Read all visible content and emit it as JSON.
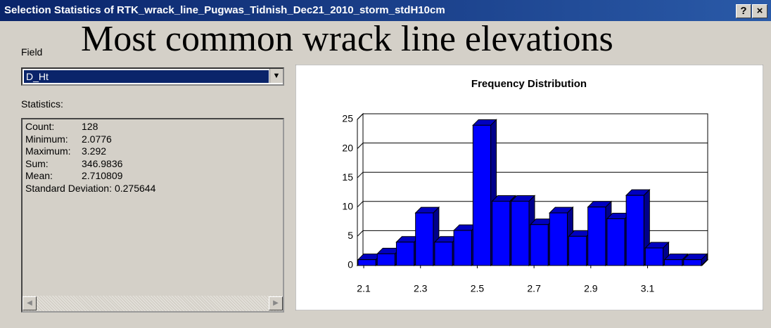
{
  "window": {
    "title": "Selection Statistics of RTK_wrack_line_Pugwas_Tidnish_Dec21_2010_storm_stdH10cm",
    "help_button": "?",
    "close_button": "×"
  },
  "overlay_title": "Most common wrack line elevations",
  "form": {
    "field_label": "Field",
    "field_value": "D_Ht",
    "statistics_label": "Statistics:",
    "statistics": [
      [
        "Count:",
        "128"
      ],
      [
        "Minimum:",
        "2.0776"
      ],
      [
        "Maximum:",
        "3.292"
      ],
      [
        "Sum:",
        "346.9836"
      ],
      [
        "Mean:",
        "2.710809"
      ],
      [
        "Standard Deviation:",
        "0.275644"
      ]
    ]
  },
  "chart_data": {
    "type": "histogram",
    "title": "Frequency Distribution",
    "bins": [
      2.0776,
      2.1451,
      2.2125,
      2.28,
      2.3475,
      2.4149,
      2.4824,
      2.5499,
      2.6173,
      2.6848,
      2.7523,
      2.8198,
      2.8872,
      2.9547,
      3.0222,
      3.0896,
      3.1571,
      3.2246,
      3.292
    ],
    "values": [
      1,
      2,
      4,
      9,
      4,
      6,
      24,
      11,
      11,
      7,
      9,
      5,
      10,
      8,
      12,
      3,
      1,
      1
    ],
    "color": "#0000ff",
    "xlim": [
      2.0776,
      3.292
    ],
    "xticks": [
      2.1,
      2.3,
      2.5,
      2.7,
      2.9,
      3.1
    ],
    "ylim": [
      0,
      25
    ],
    "yticks": [
      0,
      5,
      10,
      15,
      20,
      25
    ],
    "grid": true
  }
}
